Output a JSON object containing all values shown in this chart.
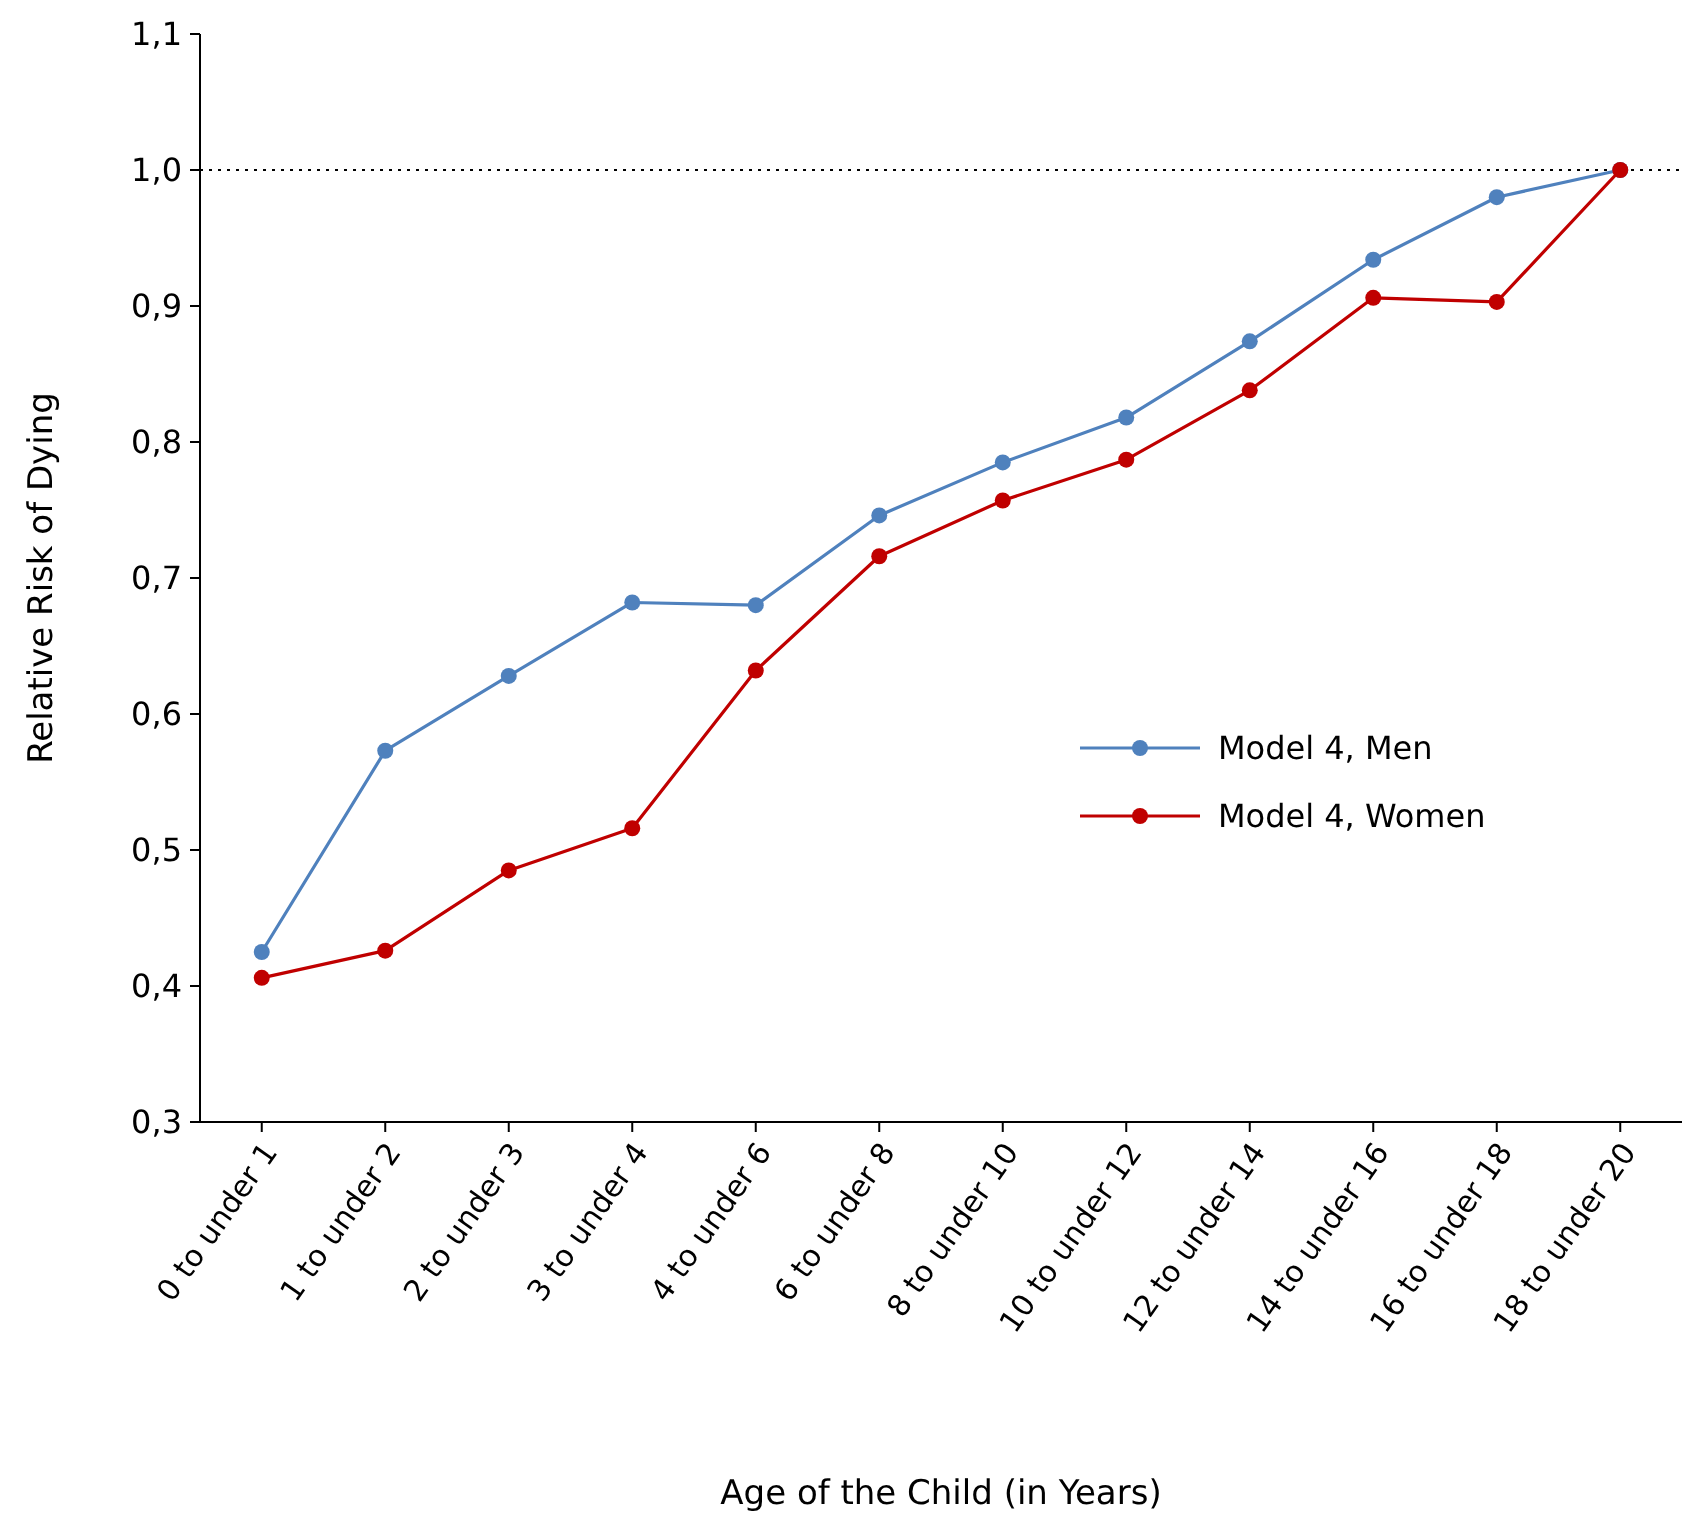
{
  "chart_data": {
    "type": "line",
    "xlabel": "Age of the Child (in Years)",
    "ylabel": "Relative Risk of Dying",
    "categories": [
      "0 to under 1",
      "1 to under 2",
      "2 to under 3",
      "3 to under 4",
      "4 to under 6",
      "6 to under 8",
      "8 to under 10",
      "10 to under 12",
      "12 to under 14",
      "14 to under 16",
      "16 to under 18",
      "18 to under 20"
    ],
    "ylim": [
      0.3,
      1.1
    ],
    "yticks": [
      {
        "value": 0.3,
        "label": "0,3"
      },
      {
        "value": 0.4,
        "label": "0,4"
      },
      {
        "value": 0.5,
        "label": "0,5"
      },
      {
        "value": 0.6,
        "label": "0,6"
      },
      {
        "value": 0.7,
        "label": "0,7"
      },
      {
        "value": 0.8,
        "label": "0,8"
      },
      {
        "value": 0.9,
        "label": "0,9"
      },
      {
        "value": 1.0,
        "label": "1,0"
      },
      {
        "value": 1.1,
        "label": "1,1"
      }
    ],
    "series": [
      {
        "name": "Model 4, Men",
        "color": "#4f81bd",
        "values": [
          0.425,
          0.573,
          0.628,
          0.682,
          0.68,
          0.746,
          0.785,
          0.818,
          0.874,
          0.934,
          0.98,
          1.0
        ]
      },
      {
        "name": "Model 4, Women",
        "color": "#c00000",
        "values": [
          0.406,
          0.426,
          0.485,
          0.516,
          0.632,
          0.716,
          0.757,
          0.787,
          0.838,
          0.906,
          0.903,
          1.0
        ]
      }
    ],
    "ref_lines": [
      {
        "axis": "y",
        "value": 1.0,
        "line_style": "dotted",
        "color": "#000000"
      }
    ],
    "grid": false,
    "legend": "right",
    "marker": "circle",
    "line_style": "solid"
  }
}
